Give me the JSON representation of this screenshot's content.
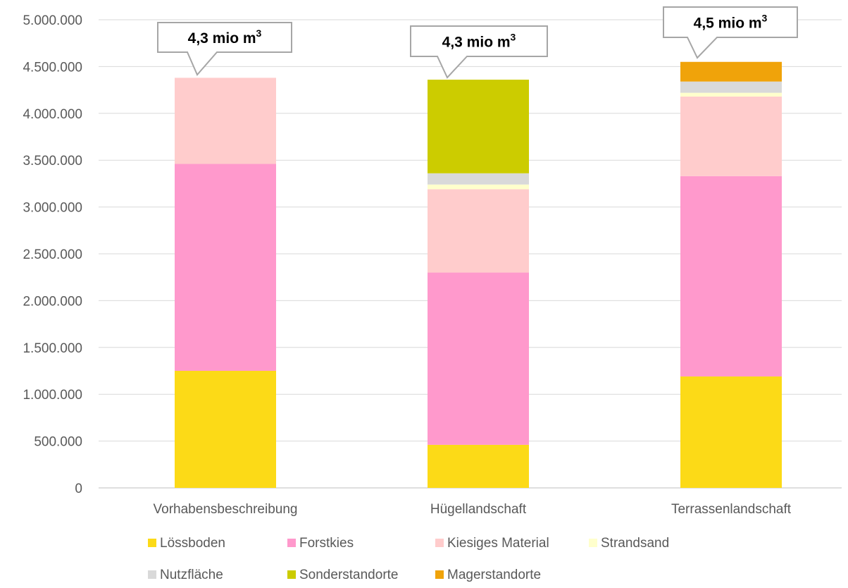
{
  "chart_data": {
    "type": "bar",
    "stacked": true,
    "categories": [
      "Vorhabensbeschreibung",
      "Hügellandschaft",
      "Terrassenlandschaft"
    ],
    "series": [
      {
        "name": "Lössboden",
        "color": "#FCDA17",
        "values": [
          1250000,
          460000,
          1190000
        ]
      },
      {
        "name": "Forstkies",
        "color": "#FF99CC",
        "values": [
          2210000,
          1840000,
          2140000
        ]
      },
      {
        "name": "Kiesiges Material",
        "color": "#FFCCCC",
        "values": [
          920000,
          890000,
          850000
        ]
      },
      {
        "name": "Strandsand",
        "color": "#FFFFCC",
        "values": [
          0,
          50000,
          40000
        ]
      },
      {
        "name": "Nutzfläche",
        "color": "#D9D9D9",
        "values": [
          0,
          120000,
          120000
        ]
      },
      {
        "name": "Sonderstandorte",
        "color": "#CCCC00",
        "values": [
          0,
          1000000,
          0
        ]
      },
      {
        "name": "Magerstandorte",
        "color": "#F0A30A",
        "values": [
          0,
          0,
          210000
        ]
      }
    ],
    "ylim": [
      0,
      5000000
    ],
    "yticks": [
      0,
      500000,
      1000000,
      1500000,
      2000000,
      2500000,
      3000000,
      3500000,
      4000000,
      4500000,
      5000000
    ],
    "ytick_labels": [
      "0",
      "500.000",
      "1.000.000",
      "1.500.000",
      "2.000.000",
      "2.500.000",
      "3.000.000",
      "3.500.000",
      "4.000.000",
      "4.500.000",
      "5.000.000"
    ],
    "grid": true,
    "legend_position": "bottom",
    "annotations": [
      {
        "category": "Vorhabensbeschreibung",
        "text": "4,3 mio m",
        "superscript": "3"
      },
      {
        "category": "Hügellandschaft",
        "text": "4,3 mio m",
        "superscript": "3"
      },
      {
        "category": "Terrassenlandschaft",
        "text": "4,5 mio m",
        "superscript": "3"
      }
    ]
  }
}
